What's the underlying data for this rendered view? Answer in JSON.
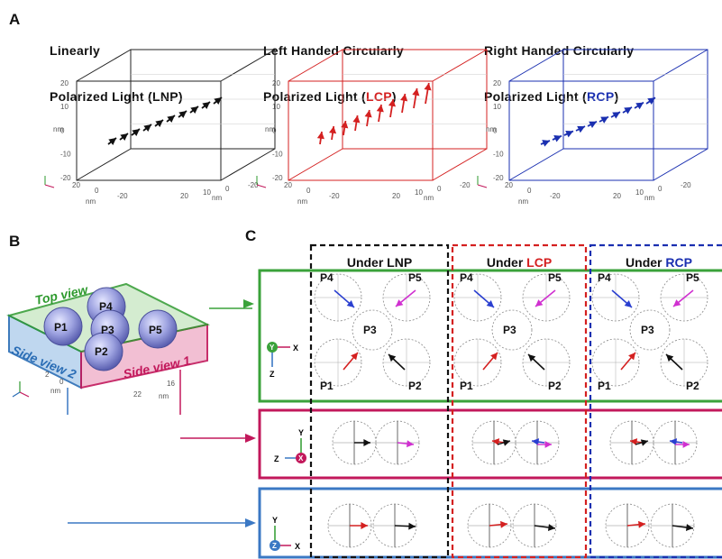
{
  "panel_a": {
    "letter": "A",
    "plots": [
      {
        "title_line1": "Linearly",
        "title_line2_pre": "Polarized Light (",
        "title_line2_hl": "LNP",
        "title_line2_post": ")",
        "color": "#111111",
        "box_color": "#222222",
        "y_ticks": [
          "20",
          "10",
          "0",
          "-10",
          "-20"
        ],
        "y_axis_label": "nm",
        "x_ticks": [
          "-20",
          "0",
          "10",
          "20"
        ],
        "x_axis_label": "nm",
        "z_ticks": [
          "20",
          "0",
          "-20"
        ],
        "z_axis_label": "nm"
      },
      {
        "title_line1": "Left Handed Circularly",
        "title_line2_pre": "Polarized Light (",
        "title_line2_hl": "LCP",
        "title_line2_post": ")",
        "color": "#d42020",
        "box_color": "#d42020",
        "y_ticks": [
          "20",
          "10",
          "0",
          "-10",
          "-20"
        ],
        "y_axis_label": "nm",
        "x_ticks": [
          "-20",
          "0",
          "10",
          "20"
        ],
        "x_axis_label": "nm",
        "z_ticks": [
          "20",
          "0",
          "-20"
        ],
        "z_axis_label": "nm"
      },
      {
        "title_line1": "Right Handed Circularly",
        "title_line2_pre": "Polarized Light (",
        "title_line2_hl": "RCP",
        "title_line2_post": ")",
        "color": "#1a2fb0",
        "box_color": "#1a2fb0",
        "y_ticks": [
          "20",
          "10",
          "0",
          "-10",
          "-20"
        ],
        "y_axis_label": "nm",
        "x_ticks": [
          "-20",
          "0",
          "10",
          "20"
        ],
        "x_axis_label": "nm",
        "z_ticks": [
          "20",
          "0",
          "-20"
        ],
        "z_axis_label": "nm"
      }
    ]
  },
  "panel_b": {
    "letter": "B",
    "top_view": "Top view",
    "side_view_1": "Side view 1",
    "side_view_2": "Side view 2",
    "particles": [
      "P1",
      "P2",
      "P3",
      "P4",
      "P5"
    ],
    "ticks_left": [
      "2",
      "0",
      "nm"
    ],
    "ticks_right": [
      "22",
      "16",
      "nm"
    ],
    "colors": {
      "top": "#2e9a2e",
      "side1": "#c2185b",
      "side2": "#2a6db5",
      "sphere": "#8a8fd8"
    }
  },
  "panel_c": {
    "letter": "C",
    "columns": [
      {
        "pre": "Under ",
        "hl": "LNP",
        "color": "#111111"
      },
      {
        "pre": "Under ",
        "hl": "LCP",
        "color": "#d42020"
      },
      {
        "pre": "Under ",
        "hl": "RCP",
        "color": "#1a2fb0"
      }
    ],
    "top_labels": [
      "P4",
      "P5",
      "P3",
      "P1",
      "P2"
    ],
    "axes_top": {
      "y": "Y",
      "x": "X",
      "z": "Z"
    },
    "axes_side1": {
      "y": "Y",
      "z": "Z",
      "x": "X"
    },
    "axes_side2": {
      "y": "Y",
      "z": "Z",
      "x": "X"
    },
    "colors": {
      "green": "#3aa23a",
      "pink": "#c2185b",
      "blue": "#3b78c4",
      "arrow_blue": "#2a3fd0",
      "arrow_magenta": "#d030d0",
      "arrow_red": "#d42020",
      "arrow_black": "#111111"
    }
  }
}
